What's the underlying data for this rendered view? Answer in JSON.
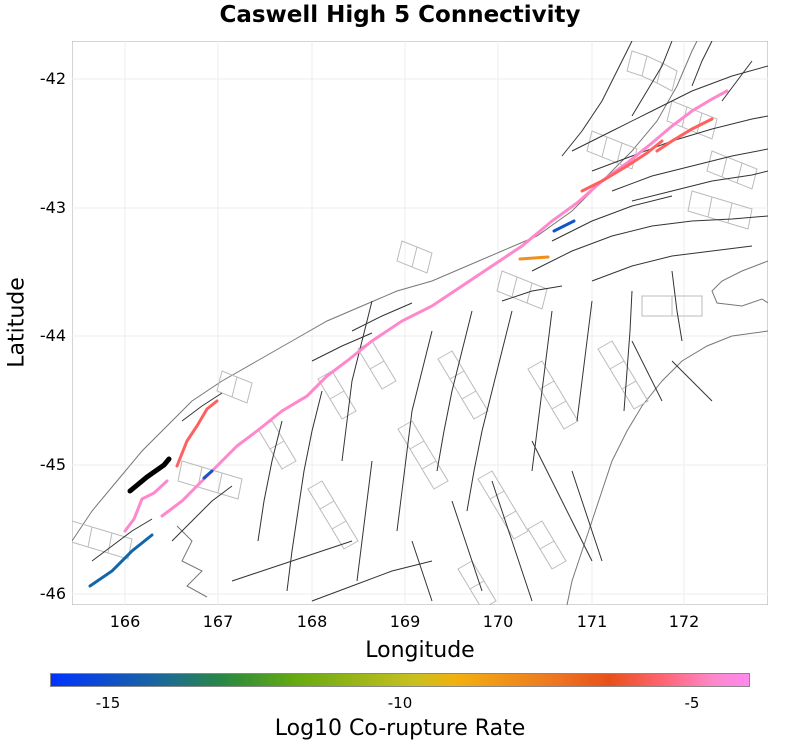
{
  "title": "Caswell High 5 Connectivity",
  "xaxis": {
    "label": "Longitude",
    "ticks": [
      "166",
      "167",
      "168",
      "169",
      "170",
      "171",
      "172"
    ],
    "range": [
      165.47,
      172.93
    ]
  },
  "yaxis": {
    "label": "Latitude",
    "ticks": [
      "-42",
      "-43",
      "-44",
      "-45",
      "-46"
    ],
    "range": [
      -46.08,
      -41.71
    ]
  },
  "colorbar": {
    "label": "Log10 Co-rupture Rate",
    "ticks": [
      "-15",
      "-10",
      "-5"
    ],
    "range": [
      -16,
      -4
    ]
  },
  "colors": {
    "background": "#ffffff",
    "coastline": "#777777",
    "fault": "#333333",
    "fault_patch": "#bbbbbb",
    "source_fault": "#000000",
    "pink": "#ff88cc",
    "red": "#ff6060",
    "orange": "#f0901a",
    "blue": "#1155cc"
  }
}
